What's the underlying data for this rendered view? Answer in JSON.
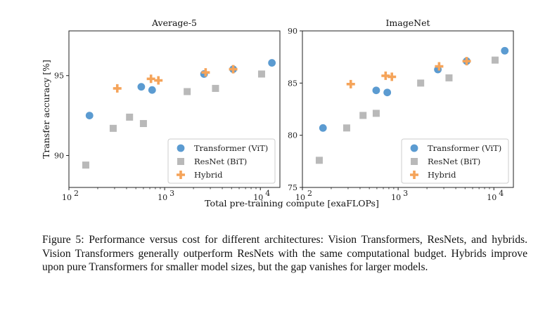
{
  "colors": {
    "transformer": "#5b9bd1",
    "resnet": "#b9b9b9",
    "hybrid": "#f5a45a",
    "axis": "#222222",
    "legend_border": "#cccccc"
  },
  "chart_data": [
    {
      "type": "scatter",
      "title": "Average-5",
      "xlabel": "Total pre-training compute [exaFLOPs]",
      "ylabel": "Transfer accuracy [%]",
      "xscale": "log",
      "xlim": [
        100,
        16000
      ],
      "ylim": [
        88,
        97.8
      ],
      "xticks": [
        {
          "value": 100,
          "base": "10",
          "exp": "2"
        },
        {
          "value": 1000,
          "base": "10",
          "exp": "3"
        },
        {
          "value": 10000,
          "base": "10",
          "exp": "4"
        }
      ],
      "yticks": [
        {
          "value": 90,
          "label": "90"
        },
        {
          "value": 95,
          "label": "95"
        }
      ],
      "legend_position": "bottom-right",
      "series": [
        {
          "name": "Transformer (ViT)",
          "key": "transformer",
          "marker": "circle",
          "points": [
            [
              164,
              92.5
            ],
            [
              570,
              94.3
            ],
            [
              740,
              94.1
            ],
            [
              2580,
              95.1
            ],
            [
              5200,
              95.4
            ],
            [
              13200,
              95.8
            ]
          ]
        },
        {
          "name": "ResNet (BiT)",
          "key": "resnet",
          "marker": "square",
          "points": [
            [
              150,
              89.4
            ],
            [
              290,
              91.7
            ],
            [
              430,
              92.4
            ],
            [
              600,
              92.0
            ],
            [
              1720,
              94.0
            ],
            [
              3400,
              94.2
            ],
            [
              10300,
              95.1
            ]
          ]
        },
        {
          "name": "Hybrid",
          "key": "hybrid",
          "marker": "plus",
          "points": [
            [
              320,
              94.2
            ],
            [
              720,
              94.8
            ],
            [
              860,
              94.7
            ],
            [
              2680,
              95.2
            ],
            [
              5200,
              95.4
            ]
          ]
        }
      ]
    },
    {
      "type": "scatter",
      "title": "ImageNet",
      "xlabel": "Total pre-training compute [exaFLOPs]",
      "ylabel": "",
      "xscale": "log",
      "xlim": [
        100,
        16000
      ],
      "ylim": [
        75,
        90
      ],
      "xticks": [
        {
          "value": 100,
          "base": "10",
          "exp": "2"
        },
        {
          "value": 1000,
          "base": "10",
          "exp": "3"
        },
        {
          "value": 10000,
          "base": "10",
          "exp": "4"
        }
      ],
      "yticks": [
        {
          "value": 75,
          "label": "75"
        },
        {
          "value": 80,
          "label": "80"
        },
        {
          "value": 85,
          "label": "85"
        },
        {
          "value": 90,
          "label": "90"
        }
      ],
      "legend_position": "bottom-right",
      "series": [
        {
          "name": "Transformer (ViT)",
          "key": "transformer",
          "marker": "circle",
          "points": [
            [
              164,
              80.7
            ],
            [
              590,
              84.3
            ],
            [
              770,
              84.1
            ],
            [
              2600,
              86.3
            ],
            [
              5200,
              87.1
            ],
            [
              13000,
              88.1
            ]
          ]
        },
        {
          "name": "ResNet (BiT)",
          "key": "resnet",
          "marker": "square",
          "points": [
            [
              150,
              77.6
            ],
            [
              290,
              80.7
            ],
            [
              430,
              81.9
            ],
            [
              590,
              82.1
            ],
            [
              1720,
              85.0
            ],
            [
              3400,
              85.5
            ],
            [
              10300,
              87.2
            ]
          ]
        },
        {
          "name": "Hybrid",
          "key": "hybrid",
          "marker": "plus",
          "points": [
            [
              320,
              84.9
            ],
            [
              740,
              85.7
            ],
            [
              860,
              85.6
            ],
            [
              2680,
              86.6
            ],
            [
              5200,
              87.1
            ]
          ]
        }
      ]
    }
  ],
  "caption": {
    "label": "Figure 5:",
    "text": "Performance versus cost for different architectures: Vision Transformers, ResNets, and hybrids. Vision Transformers generally outperform ResNets with the same computational budget. Hybrids improve upon pure Transformers for smaller model sizes, but the gap vanishes for larger models."
  }
}
